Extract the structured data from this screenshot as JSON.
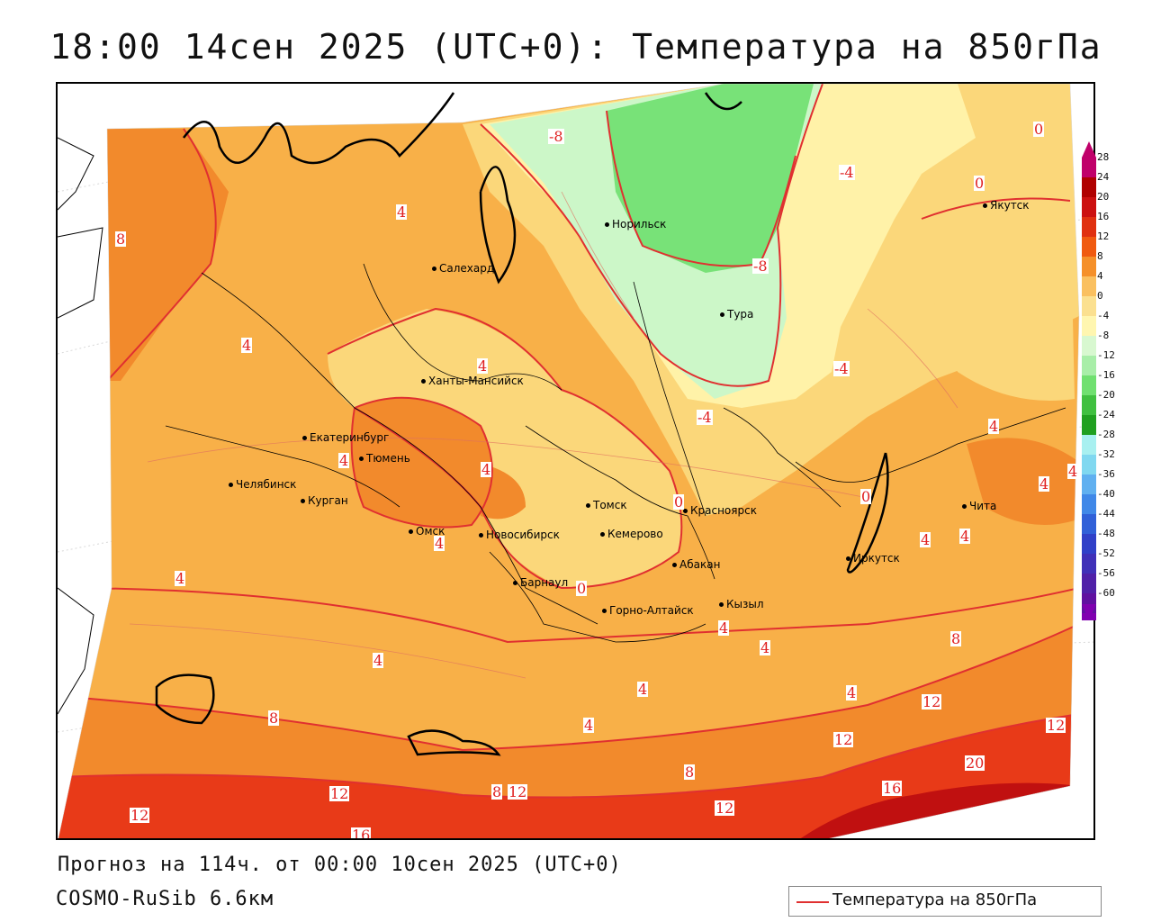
{
  "header": {
    "title": "18:00 14сен 2025 (UTC+0): Температура на 850гПа"
  },
  "footer": {
    "forecast": "Прогноз на 114ч. от 00:00 10сен 2025 (UTC+0)",
    "model": "COSMO-RuSib 6.6км"
  },
  "legend": {
    "label": "Температура на 850гПа",
    "line_color": "#e03030"
  },
  "colorbar": {
    "ticks": [
      "28",
      "24",
      "20",
      "16",
      "12",
      "8",
      "4",
      "0",
      "-4",
      "-8",
      "-12",
      "-16",
      "-20",
      "-24",
      "-28",
      "-32",
      "-36",
      "-40",
      "-44",
      "-48",
      "-52",
      "-56",
      "-60"
    ],
    "colors": [
      "#c0006a",
      "#b00000",
      "#cc1010",
      "#e03010",
      "#f05a10",
      "#f5902a",
      "#fac060",
      "#fbe090",
      "#fff6b0",
      "#d8f8d0",
      "#a8eea8",
      "#70e070",
      "#40c040",
      "#20a020",
      "#a8f0f0",
      "#80d8f0",
      "#60b0f0",
      "#4088e8",
      "#3060d8",
      "#3040c8",
      "#4030b8",
      "#5020a8",
      "#6010a0",
      "#8000b0"
    ]
  },
  "cities": [
    {
      "name": "Салехард"
    },
    {
      "name": "Норильск"
    },
    {
      "name": "Якутск"
    },
    {
      "name": "Тура"
    },
    {
      "name": "Ханты-Мансийск"
    },
    {
      "name": "Екатеринбург"
    },
    {
      "name": "Тюмень"
    },
    {
      "name": "Челябинск"
    },
    {
      "name": "Курган"
    },
    {
      "name": "Омск"
    },
    {
      "name": "Томск"
    },
    {
      "name": "Красноярск"
    },
    {
      "name": "Новосибирск"
    },
    {
      "name": "Кемерово"
    },
    {
      "name": "Абакан"
    },
    {
      "name": "Барнаул"
    },
    {
      "name": "Горно-Алтайск"
    },
    {
      "name": "Кызыл"
    },
    {
      "name": "Иркутск"
    },
    {
      "name": "Чита"
    }
  ],
  "contour_labels": [
    "-8",
    "-4",
    "0",
    "-8",
    "-4",
    "-4",
    "0",
    "8",
    "4",
    "4",
    "4",
    "4",
    "4",
    "4",
    "0",
    "0",
    "4",
    "4",
    "4",
    "0",
    "4",
    "4",
    "4",
    "4",
    "8",
    "4",
    "8",
    "4",
    "4",
    "12",
    "12",
    "8",
    "12",
    "12",
    "8",
    "12",
    "12",
    "20",
    "16",
    "16",
    "12",
    "4",
    "4"
  ],
  "colors": {
    "isotherm": "#e03030",
    "warm_16": "#c01010",
    "warm_12": "#e83a18",
    "warm_8": "#f28a2c",
    "warm_4": "#f8b048",
    "warm_0": "#fbd77a",
    "cool_0": "#fff2a8",
    "cool_m4": "#ccf7c8",
    "cool_m8": "#78e278"
  }
}
